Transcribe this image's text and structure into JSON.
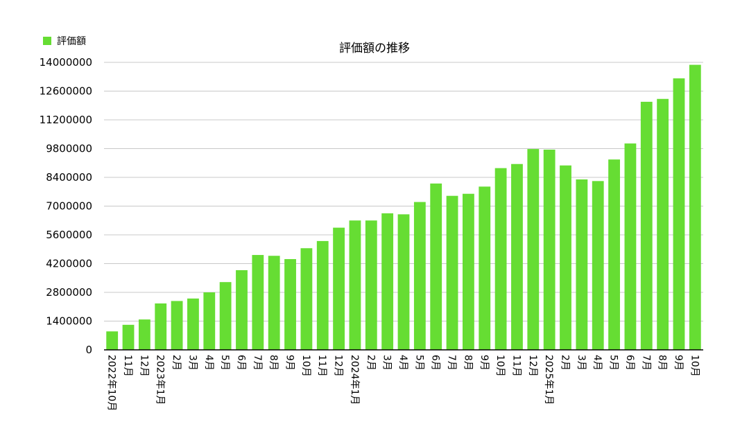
{
  "chart_data": {
    "type": "bar",
    "title": "評価額の推移",
    "legend_position": "top-left",
    "grid": true,
    "series": [
      {
        "name": "評価額",
        "color": "#66dd33",
        "values": [
          900000,
          1220000,
          1480000,
          2260000,
          2380000,
          2500000,
          2800000,
          3300000,
          3880000,
          4620000,
          4580000,
          4420000,
          4950000,
          5300000,
          5950000,
          6300000,
          6300000,
          6650000,
          6600000,
          7200000,
          8100000,
          7500000,
          7600000,
          7950000,
          8850000,
          9050000,
          9780000,
          9750000,
          8980000,
          8300000,
          8220000,
          9270000,
          10050000,
          12080000,
          12220000,
          13220000,
          13880000
        ]
      }
    ],
    "categories": [
      "2022年10月",
      "11月",
      "12月",
      "2023年1月",
      "2月",
      "3月",
      "4月",
      "5月",
      "6月",
      "7月",
      "8月",
      "9月",
      "10月",
      "11月",
      "12月",
      "2024年1月",
      "2月",
      "3月",
      "4月",
      "5月",
      "6月",
      "7月",
      "8月",
      "9月",
      "10月",
      "11月",
      "12月",
      "2025年1月",
      "2月",
      "3月",
      "4月",
      "5月",
      "6月",
      "7月",
      "8月",
      "9月",
      "10月"
    ],
    "ylim": [
      0,
      14000000
    ],
    "yticks": [
      "0",
      "1400000",
      "2800000",
      "4200000",
      "5600000",
      "7000000",
      "8400000",
      "9800000",
      "11200000",
      "12600000",
      "14000000"
    ],
    "xlabel": "",
    "ylabel": ""
  }
}
